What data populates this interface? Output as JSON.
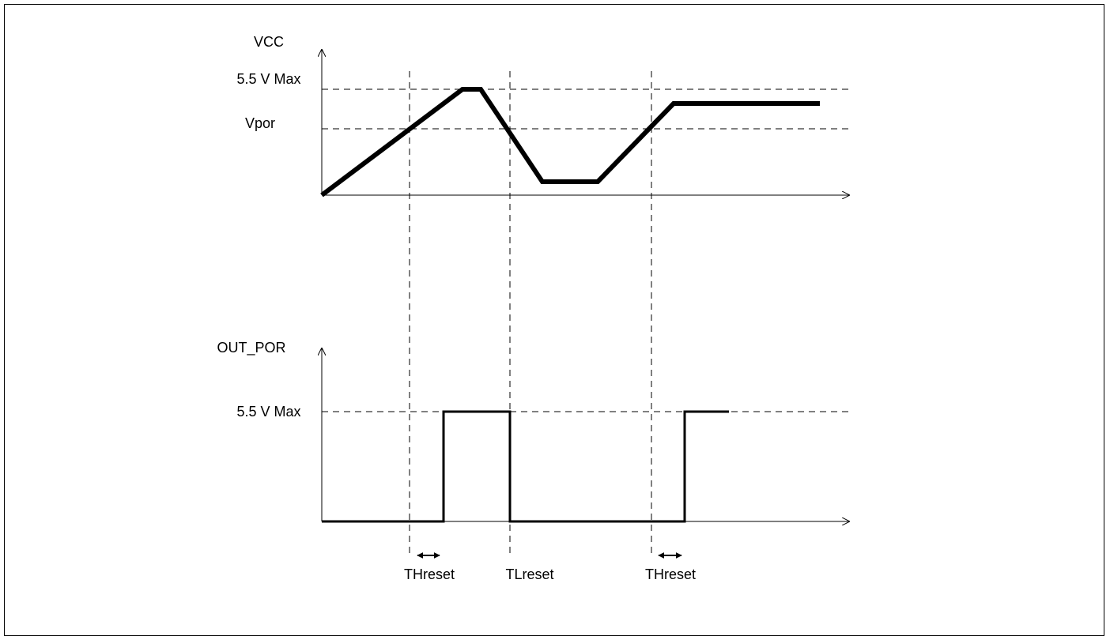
{
  "diagram": {
    "vcc_label": "VCC",
    "vcc_max_label": "5.5 V Max",
    "vpor_label": "Vpor",
    "out_label": "OUT_POR",
    "out_max_label": "5.5 V Max",
    "timing_labels": [
      "THreset",
      "TLreset",
      "THreset"
    ]
  }
}
